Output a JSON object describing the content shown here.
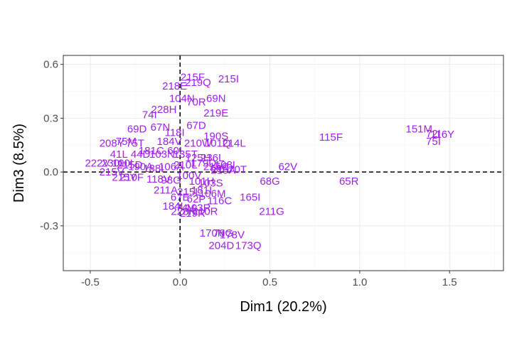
{
  "colors": {
    "label": "#a020f0",
    "grid_major": "#ebebeb",
    "grid_minor": "#f5f5f5",
    "panel_border": "#333333",
    "ref_line": "#000000"
  },
  "chart_data": {
    "type": "scatter",
    "title": "",
    "xlabel": "Dim1 (20.2%)",
    "ylabel": "Dim3 (8.5%)",
    "xlim": [
      -0.65,
      1.8
    ],
    "ylim": [
      -0.55,
      0.65
    ],
    "xticks": [
      -0.5,
      0.0,
      0.5,
      1.0,
      1.5
    ],
    "xtick_labels": [
      "-0.5",
      "0.0",
      "0.5",
      "1.0",
      "1.5"
    ],
    "yticks": [
      -0.3,
      0.0,
      0.3,
      0.6
    ],
    "ytick_labels": [
      "-0.3",
      "0.0",
      "0.3",
      "0.6"
    ],
    "grid": true,
    "reference_lines": {
      "x": 0,
      "y": 0,
      "style": "dashed"
    },
    "points": [
      {
        "label": "151M",
        "x": 1.33,
        "y": 0.24
      },
      {
        "label": "116Y",
        "x": 1.46,
        "y": 0.21
      },
      {
        "label": "72I",
        "x": 1.41,
        "y": 0.215
      },
      {
        "label": "75I",
        "x": 1.41,
        "y": 0.17
      },
      {
        "label": "115F",
        "x": 0.84,
        "y": 0.195
      },
      {
        "label": "62V",
        "x": 0.6,
        "y": 0.03
      },
      {
        "label": "68G",
        "x": 0.5,
        "y": -0.05
      },
      {
        "label": "65R",
        "x": 0.94,
        "y": -0.05
      },
      {
        "label": "211G",
        "x": 0.51,
        "y": -0.22
      },
      {
        "label": "165I",
        "x": 0.39,
        "y": -0.14
      },
      {
        "label": "215F",
        "x": 0.07,
        "y": 0.53
      },
      {
        "label": "215I",
        "x": 0.27,
        "y": 0.52
      },
      {
        "label": "219Q",
        "x": 0.1,
        "y": 0.5
      },
      {
        "label": "218E",
        "x": -0.03,
        "y": 0.48
      },
      {
        "label": "104N",
        "x": 0.01,
        "y": 0.41
      },
      {
        "label": "69N",
        "x": 0.2,
        "y": 0.41
      },
      {
        "label": "70R",
        "x": 0.09,
        "y": 0.39
      },
      {
        "label": "228H",
        "x": -0.09,
        "y": 0.35
      },
      {
        "label": "74I",
        "x": -0.17,
        "y": 0.32
      },
      {
        "label": "219E",
        "x": 0.2,
        "y": 0.33
      },
      {
        "label": "67N",
        "x": -0.11,
        "y": 0.25
      },
      {
        "label": "67D",
        "x": 0.09,
        "y": 0.26
      },
      {
        "label": "69D",
        "x": -0.24,
        "y": 0.24
      },
      {
        "label": "190S",
        "x": 0.2,
        "y": 0.2
      },
      {
        "label": "214L",
        "x": 0.3,
        "y": 0.16
      },
      {
        "label": "210W",
        "x": 0.1,
        "y": 0.16
      },
      {
        "label": "101Q",
        "x": 0.21,
        "y": 0.16
      },
      {
        "label": "208Y",
        "x": -0.38,
        "y": 0.16
      },
      {
        "label": "75M",
        "x": -0.3,
        "y": 0.17
      },
      {
        "label": "75T",
        "x": -0.25,
        "y": 0.16
      },
      {
        "label": "184V",
        "x": -0.06,
        "y": 0.17
      },
      {
        "label": "118I",
        "x": -0.03,
        "y": 0.22
      },
      {
        "label": "41L",
        "x": -0.34,
        "y": 0.1
      },
      {
        "label": "44D",
        "x": -0.22,
        "y": 0.1
      },
      {
        "label": "181C",
        "x": -0.16,
        "y": 0.12
      },
      {
        "label": "60I",
        "x": -0.03,
        "y": 0.12
      },
      {
        "label": "135T",
        "x": 0.03,
        "y": 0.1
      },
      {
        "label": "103N",
        "x": -0.1,
        "y": 0.1
      },
      {
        "label": "125H",
        "x": 0.1,
        "y": 0.08
      },
      {
        "label": "236L",
        "x": 0.18,
        "y": 0.08
      },
      {
        "label": "222V",
        "x": -0.46,
        "y": 0.05
      },
      {
        "label": "230L",
        "x": -0.37,
        "y": 0.05
      },
      {
        "label": "100I",
        "x": -0.32,
        "y": 0.05
      },
      {
        "label": "215D",
        "x": -0.28,
        "y": 0.04
      },
      {
        "label": "190A",
        "x": -0.22,
        "y": 0.03
      },
      {
        "label": "188L",
        "x": -0.14,
        "y": 0.02
      },
      {
        "label": "106A",
        "x": -0.05,
        "y": 0.03
      },
      {
        "label": "210L",
        "x": 0.03,
        "y": 0.04
      },
      {
        "label": "179D",
        "x": 0.13,
        "y": 0.05
      },
      {
        "label": "215C",
        "x": 0.2,
        "y": 0.03
      },
      {
        "label": "108I",
        "x": 0.25,
        "y": 0.04
      },
      {
        "label": "69S",
        "x": 0.22,
        "y": 0.02
      },
      {
        "label": "215A",
        "x": 0.24,
        "y": 0.01
      },
      {
        "label": "70T",
        "x": 0.32,
        "y": 0.015
      },
      {
        "label": "215V",
        "x": -0.38,
        "y": -0.0
      },
      {
        "label": "215Y",
        "x": -0.31,
        "y": -0.03
      },
      {
        "label": "210F",
        "x": -0.27,
        "y": -0.03
      },
      {
        "label": "118V",
        "x": -0.12,
        "y": -0.04
      },
      {
        "label": "98G",
        "x": -0.05,
        "y": -0.045
      },
      {
        "label": "100V",
        "x": 0.05,
        "y": -0.02
      },
      {
        "label": "101H",
        "x": 0.12,
        "y": -0.05
      },
      {
        "label": "103S",
        "x": 0.17,
        "y": -0.06
      },
      {
        "label": "211A",
        "x": -0.08,
        "y": -0.1
      },
      {
        "label": "215L",
        "x": 0.05,
        "y": -0.11
      },
      {
        "label": "181I",
        "x": 0.12,
        "y": -0.1
      },
      {
        "label": "106M",
        "x": 0.18,
        "y": -0.12
      },
      {
        "label": "67E",
        "x": 0.0,
        "y": -0.14
      },
      {
        "label": "62P",
        "x": 0.09,
        "y": -0.15
      },
      {
        "label": "116C",
        "x": 0.22,
        "y": -0.16
      },
      {
        "label": "184I",
        "x": -0.04,
        "y": -0.19
      },
      {
        "label": "74V",
        "x": 0.03,
        "y": -0.2
      },
      {
        "label": "103R",
        "x": 0.1,
        "y": -0.2
      },
      {
        "label": "228R",
        "x": 0.02,
        "y": -0.22
      },
      {
        "label": "219R",
        "x": 0.07,
        "y": -0.23
      },
      {
        "label": "210R",
        "x": 0.14,
        "y": -0.22
      },
      {
        "label": "170N",
        "x": 0.18,
        "y": -0.34
      },
      {
        "label": "70G",
        "x": 0.24,
        "y": -0.34
      },
      {
        "label": "178V",
        "x": 0.29,
        "y": -0.35
      },
      {
        "label": "204D",
        "x": 0.23,
        "y": -0.41
      },
      {
        "label": "173Q",
        "x": 0.38,
        "y": -0.41
      }
    ]
  }
}
